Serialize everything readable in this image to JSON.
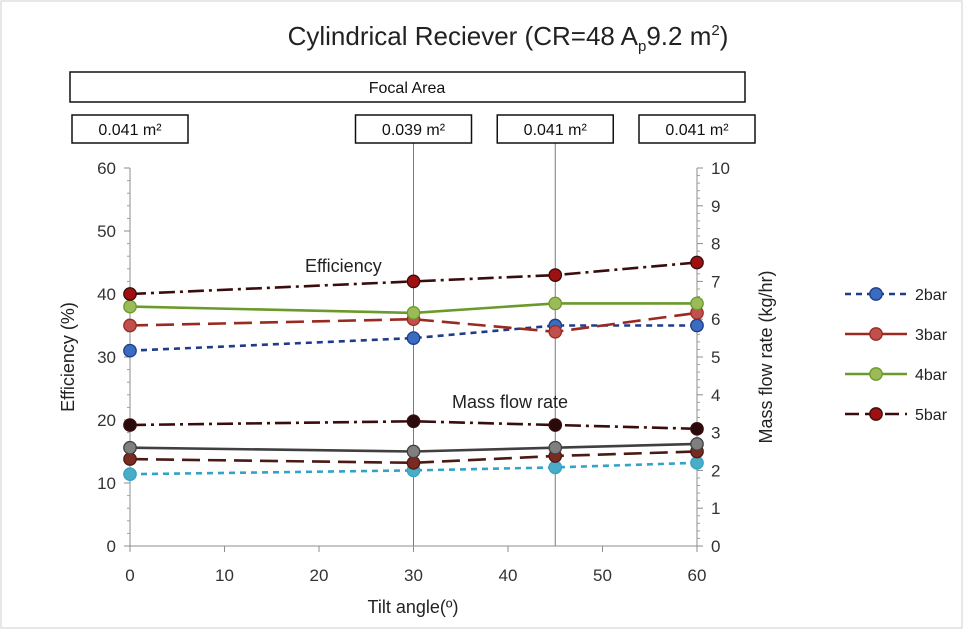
{
  "chart_data": {
    "type": "line",
    "title": "Cylindrical Reciever (CR=48 A",
    "title_sub": "p",
    "title_mid": "9.2 m",
    "title_sup": "2",
    "title_end": ")",
    "header_box": "Focal Area",
    "focal_areas": [
      {
        "x": 0,
        "label": "0.041 m²"
      },
      {
        "x": 30,
        "label": "0.039 m²"
      },
      {
        "x": 45,
        "label": "0.041 m²"
      },
      {
        "x": 60,
        "label": "0.041 m²"
      }
    ],
    "xlabel": "Tilt angle(º)",
    "ylabel": "Efficiency (%)",
    "y2label": "Mass flow rate (kg/hr)",
    "xlim": [
      0,
      60
    ],
    "ylim": [
      0,
      60
    ],
    "y2lim": [
      0,
      10
    ],
    "xticks": [
      0,
      10,
      20,
      30,
      40,
      50,
      60
    ],
    "yticks": [
      0,
      10,
      20,
      30,
      40,
      50,
      60
    ],
    "y2ticks": [
      0,
      1,
      2,
      3,
      4,
      5,
      6,
      7,
      8,
      9,
      10
    ],
    "annotations": {
      "efficiency": "Efficiency",
      "mass_flow": "Mass flow rate"
    },
    "legend_position": "right",
    "series": [
      {
        "name": "2bar",
        "group": "efficiency",
        "axis": "left",
        "color": "#1f3c88",
        "marker": "#3a6cc0",
        "dash": "6,5",
        "x": [
          0,
          30,
          45,
          60
        ],
        "values": [
          31,
          33,
          35,
          35
        ]
      },
      {
        "name": "3bar",
        "group": "efficiency",
        "axis": "left",
        "color": "#9a2a20",
        "marker": "#c0504d",
        "dash": "18,8",
        "x": [
          0,
          30,
          45,
          60
        ],
        "values": [
          35,
          36,
          34,
          37
        ]
      },
      {
        "name": "4bar",
        "group": "efficiency",
        "axis": "left",
        "color": "#6a9a2a",
        "marker": "#9bbb59",
        "dash": "",
        "x": [
          0,
          30,
          45,
          60
        ],
        "values": [
          38,
          37,
          38.5,
          38.5
        ]
      },
      {
        "name": "5bar",
        "group": "efficiency",
        "axis": "left",
        "color": "#3a0d0d",
        "marker": "#a01010",
        "dash": "16,5,3,5",
        "x": [
          0,
          30,
          45,
          60
        ],
        "values": [
          40,
          42,
          43,
          45
        ]
      },
      {
        "name": "2bar",
        "group": "mass",
        "axis": "right",
        "color": "#31a3c8",
        "marker": "#4bacc6",
        "dash": "6,5",
        "x": [
          0,
          30,
          45,
          60
        ],
        "values": [
          1.9,
          2.0,
          2.08,
          2.2
        ]
      },
      {
        "name": "3bar",
        "group": "mass",
        "axis": "right",
        "color": "#4a1a14",
        "marker": "#7a2a20",
        "dash": "18,8",
        "x": [
          0,
          30,
          45,
          60
        ],
        "values": [
          2.3,
          2.2,
          2.38,
          2.5
        ]
      },
      {
        "name": "4bar",
        "group": "mass",
        "axis": "right",
        "color": "#404040",
        "marker": "#7f7f7f",
        "dash": "",
        "x": [
          0,
          30,
          45,
          60
        ],
        "values": [
          2.6,
          2.5,
          2.6,
          2.7
        ]
      },
      {
        "name": "5bar",
        "group": "mass",
        "axis": "right",
        "color": "#3a0d0d",
        "marker": "#2a0a0a",
        "dash": "16,5,3,5",
        "x": [
          0,
          30,
          45,
          60
        ],
        "values": [
          3.2,
          3.3,
          3.2,
          3.1
        ]
      }
    ],
    "legend": [
      {
        "name": "2bar",
        "color": "#1f3c88",
        "marker": "#3a6cc0",
        "dash": "6,5"
      },
      {
        "name": "3bar",
        "color": "#9a2a20",
        "marker": "#c0504d",
        "dash": ""
      },
      {
        "name": "4bar",
        "color": "#6a9a2a",
        "marker": "#9bbb59",
        "dash": ""
      },
      {
        "name": "5bar",
        "color": "#3a0d0d",
        "marker": "#a01010",
        "dash": "14,6"
      }
    ]
  }
}
